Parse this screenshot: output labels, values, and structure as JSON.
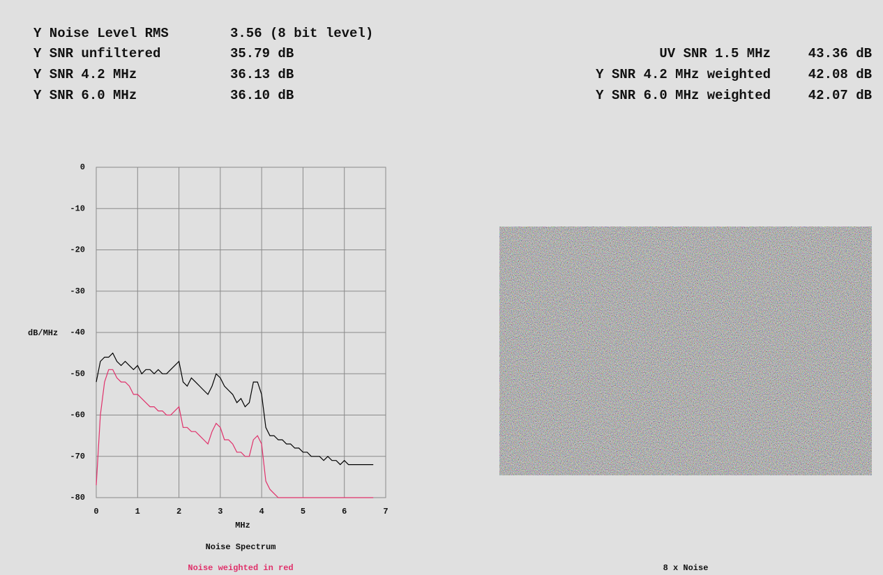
{
  "readouts": {
    "left": [
      {
        "label": "Y Noise Level RMS",
        "value": "3.56 (8 bit level)"
      },
      {
        "label": "Y SNR unfiltered",
        "value": "35.79 dB"
      },
      {
        "label": "Y SNR 4.2 MHz",
        "value": "36.13 dB"
      },
      {
        "label": "Y SNR 6.0 MHz",
        "value": "36.10 dB"
      }
    ],
    "right": [
      {
        "label": "UV SNR 1.5 MHz",
        "value": "43.36 dB"
      },
      {
        "label": "Y SNR 4.2 MHz weighted",
        "value": "42.08 dB"
      },
      {
        "label": "Y SNR 6.0 MHz weighted",
        "value": "42.07 dB"
      }
    ]
  },
  "image_caption": "8 x Noise",
  "chart_data": {
    "type": "line",
    "title": "Noise Spectrum",
    "subtitle": "Noise weighted in red",
    "subtitle_color": "#e0306a",
    "x_label": "MHz",
    "y_label": "dB/MHz",
    "x": [
      0,
      0.1,
      0.2,
      0.3,
      0.4,
      0.5,
      0.6,
      0.7,
      0.8,
      0.9,
      1,
      1.1,
      1.2,
      1.3,
      1.4,
      1.5,
      1.6,
      1.7,
      1.8,
      1.9,
      2,
      2.1,
      2.2,
      2.3,
      2.4,
      2.5,
      2.6,
      2.7,
      2.8,
      2.9,
      3,
      3.1,
      3.2,
      3.3,
      3.4,
      3.5,
      3.6,
      3.7,
      3.8,
      3.9,
      4,
      4.1,
      4.2,
      4.3,
      4.4,
      4.5,
      4.6,
      4.7,
      4.8,
      4.9,
      5,
      5.1,
      5.2,
      5.3,
      5.4,
      5.5,
      5.6,
      5.7,
      5.8,
      5.9,
      6,
      6.1,
      6.2,
      6.3,
      6.4,
      6.5,
      6.6,
      6.7
    ],
    "series": [
      {
        "color": "#000000",
        "values": [
          -52,
          -47,
          -46,
          -46,
          -45,
          -47,
          -48,
          -47,
          -48,
          -49,
          -48,
          -50,
          -49,
          -49,
          -50,
          -49,
          -50,
          -50,
          -49,
          -48,
          -47,
          -52,
          -53,
          -51,
          -52,
          -53,
          -54,
          -55,
          -53,
          -50,
          -51,
          -53,
          -54,
          -55,
          -57,
          -56,
          -58,
          -57,
          -52,
          -52,
          -55,
          -63,
          -65,
          -65,
          -66,
          -66,
          -67,
          -67,
          -68,
          -68,
          -69,
          -69,
          -70,
          -70,
          -70,
          -71,
          -70,
          -71,
          -71,
          -72,
          -71,
          -72,
          -72,
          -72,
          -72,
          -72,
          -72,
          -72
        ]
      },
      {
        "color": "#e0306a",
        "values": [
          -77,
          -60,
          -52,
          -49,
          -49,
          -51,
          -52,
          -52,
          -53,
          -55,
          -55,
          -56,
          -57,
          -58,
          -58,
          -59,
          -59,
          -60,
          -60,
          -59,
          -58,
          -63,
          -63,
          -64,
          -64,
          -65,
          -66,
          -67,
          -64,
          -62,
          -63,
          -66,
          -66,
          -67,
          -69,
          -69,
          -70,
          -70,
          -66,
          -65,
          -67,
          -76,
          -78,
          -79,
          -80,
          -80,
          -80,
          -80,
          -80,
          -80,
          -80,
          -80,
          -80,
          -80,
          -80,
          -80,
          -80,
          -80,
          -80,
          -80,
          -80,
          -80,
          -80,
          -80,
          -80,
          -80,
          -80,
          -80
        ]
      }
    ],
    "xlim": [
      0,
      7
    ],
    "ylim": [
      -80,
      0
    ],
    "xticks": [
      0,
      1,
      2,
      3,
      4,
      5,
      6,
      7
    ],
    "yticks": [
      0,
      -10,
      -20,
      -30,
      -40,
      -50,
      -60,
      -70,
      -80
    ],
    "grid": true
  }
}
